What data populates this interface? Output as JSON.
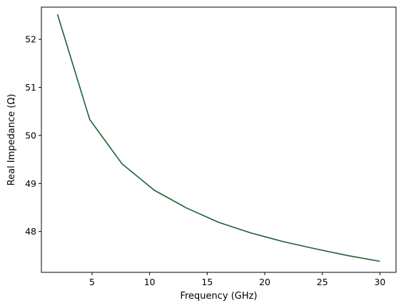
{
  "chart_data": {
    "type": "line",
    "title": "",
    "xlabel": "Frequency (GHz)",
    "ylabel": "Real Impedance (Ω)",
    "xlim": [
      0.6,
      31.4
    ],
    "ylim": [
      47.15,
      52.67
    ],
    "xticks": [
      5,
      10,
      15,
      20,
      25,
      30
    ],
    "yticks": [
      48,
      49,
      50,
      51,
      52
    ],
    "grid": false,
    "series": [
      {
        "color": "#1b6133",
        "x": [
          2.0,
          4.8,
          7.6,
          10.4,
          13.2,
          16.0,
          18.8,
          21.6,
          24.4,
          27.2,
          30.0
        ],
        "y": [
          52.52,
          50.33,
          49.41,
          48.86,
          48.49,
          48.19,
          47.97,
          47.79,
          47.64,
          47.5,
          47.38
        ]
      }
    ]
  }
}
